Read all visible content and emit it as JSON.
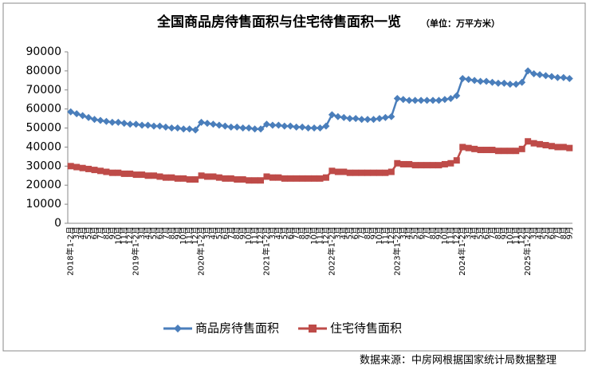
{
  "chart_data": {
    "type": "line",
    "title": "全国商品房待售面积与住宅待售面积一览",
    "subtitle": "（单位：万平方米）",
    "source": "数据来源：中房网根据国家统计局数据整理",
    "categories": [
      "2018年1-2月",
      "3月",
      "4月",
      "5月",
      "6月",
      "7月",
      "8月",
      "9月",
      "10月",
      "11月",
      "12月",
      "2019年1-2月",
      "3月",
      "4月",
      "5月",
      "6月",
      "7月",
      "8月",
      "9月",
      "10月",
      "11月",
      "12月",
      "2020年1-2月",
      "3月",
      "4月",
      "5月",
      "6月",
      "7月",
      "8月",
      "9月",
      "10月",
      "11月",
      "12月",
      "2021年1-2月",
      "3月",
      "4月",
      "5月",
      "6月",
      "7月",
      "8月",
      "9月",
      "10月",
      "11月",
      "12月",
      "2022年1-2月",
      "3月",
      "4月",
      "5月",
      "6月",
      "7月",
      "8月",
      "9月",
      "10月",
      "11月",
      "12月",
      "2023年1-2月",
      "3月",
      "4月",
      "5月",
      "6月",
      "7月",
      "8月",
      "9月",
      "10月",
      "11月",
      "12月",
      "2024年1-2月",
      "3月",
      "4月",
      "5月",
      "6月",
      "7月",
      "8月",
      "9月",
      "10月",
      "11月",
      "12月",
      "2025年1-2月",
      "3月",
      "4月",
      "5月",
      "6月",
      "7月",
      "8月",
      "9月"
    ],
    "series": [
      {
        "name": "商品房待售面积",
        "color": "#4a7ebb",
        "marker": "diamond",
        "values": [
          58500,
          57500,
          56500,
          55500,
          54500,
          54000,
          53500,
          53000,
          53000,
          52500,
          52000,
          52000,
          51500,
          51500,
          51000,
          51000,
          50500,
          50000,
          50000,
          49500,
          49500,
          49000,
          53000,
          52500,
          52000,
          51500,
          51000,
          50500,
          50500,
          50000,
          50000,
          49500,
          49500,
          52000,
          51500,
          51500,
          51000,
          51000,
          50500,
          50500,
          50000,
          50000,
          50000,
          51000,
          57000,
          56000,
          55500,
          55000,
          55000,
          54500,
          54500,
          54500,
          55000,
          55500,
          56000,
          65500,
          65000,
          64500,
          64500,
          64500,
          64500,
          64500,
          64500,
          65000,
          65500,
          67000,
          76000,
          75500,
          75000,
          74500,
          74500,
          74000,
          73500,
          73500,
          73000,
          73000,
          74000,
          80000,
          78500,
          78000,
          77500,
          77000,
          76500,
          76500,
          76000
        ]
      },
      {
        "name": "住宅待售面积",
        "color": "#be4b48",
        "marker": "square",
        "values": [
          30000,
          29500,
          29000,
          28500,
          28000,
          27500,
          27000,
          26500,
          26500,
          26000,
          26000,
          25500,
          25500,
          25000,
          25000,
          24500,
          24000,
          24000,
          23500,
          23500,
          23000,
          23000,
          25000,
          24500,
          24500,
          24000,
          23500,
          23500,
          23000,
          23000,
          22500,
          22500,
          22500,
          24500,
          24000,
          24000,
          23500,
          23500,
          23500,
          23500,
          23500,
          23500,
          23500,
          24000,
          27500,
          27000,
          27000,
          26500,
          26500,
          26500,
          26500,
          26500,
          26500,
          26500,
          27000,
          31500,
          31000,
          31000,
          30500,
          30500,
          30500,
          30500,
          30500,
          31000,
          31500,
          33000,
          40000,
          39500,
          39000,
          38500,
          38500,
          38500,
          38000,
          38000,
          38000,
          38000,
          39000,
          43000,
          42000,
          41500,
          41000,
          40500,
          40000,
          40000,
          39500
        ]
      }
    ],
    "ylim": [
      0,
      90000
    ],
    "yticks": [
      0,
      10000,
      20000,
      30000,
      40000,
      50000,
      60000,
      70000,
      80000,
      90000
    ],
    "grid": false,
    "legend": "bottom"
  }
}
